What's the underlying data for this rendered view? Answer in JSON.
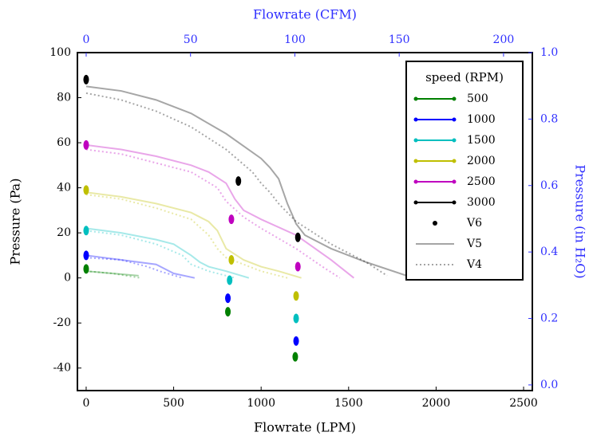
{
  "chart_data": {
    "type": "line",
    "xlabel": "Flowrate (LPM)",
    "ylabel": "Pressure (Pa)",
    "x2label": "Flowrate (CFM)",
    "y2label": "Pressure (in H₂O)",
    "xlim": [
      -50,
      2550
    ],
    "xticks": [
      0,
      500,
      1000,
      1500,
      2000,
      2500
    ],
    "ylim": [
      -50,
      100
    ],
    "yticks": [
      -40,
      -20,
      0,
      20,
      40,
      60,
      80,
      100
    ],
    "x2lim": [
      -4.2,
      213.8
    ],
    "x2ticks": [
      0,
      50,
      100,
      150,
      200
    ],
    "y2lim": [
      -0.017,
      1.0
    ],
    "y2ticks": [
      {
        "value": 0,
        "label": "0.0"
      },
      0.2,
      0.4,
      0.6,
      0.8,
      {
        "value": 1,
        "label": "1.0"
      }
    ],
    "secondary_color": "#3030ff",
    "legend": "upper right",
    "legend_title": "speed (RPM)",
    "versions": [
      {
        "name": "V6",
        "style": "dots",
        "opacity": 1
      },
      {
        "name": "V5",
        "style": "solid",
        "opacity": 0.35
      },
      {
        "name": "V4",
        "style": "dotted",
        "opacity": 0.35
      }
    ],
    "series": [
      {
        "name": "500",
        "color": "#008000",
        "data": [
          {
            "x": [
              0,
              810,
              1195
            ],
            "values": [
              4,
              -15,
              -35
            ]
          },
          {
            "x": [
              0,
              150,
              300
            ],
            "values": [
              3,
              2,
              1
            ]
          },
          {
            "x": [
              0,
              150,
              310
            ],
            "values": [
              3,
              2,
              0
            ]
          }
        ]
      },
      {
        "name": "1000",
        "color": "#0000ff",
        "data": [
          {
            "x": [
              0,
              810,
              1200
            ],
            "values": [
              10,
              -9,
              -28
            ]
          },
          {
            "x": [
              0,
              200,
              400,
              450,
              500,
              620
            ],
            "values": [
              10,
              8,
              6,
              4,
              2,
              0
            ]
          },
          {
            "x": [
              0,
              200,
              350,
              420,
              550
            ],
            "values": [
              9,
              8,
              5,
              3,
              0
            ]
          }
        ]
      },
      {
        "name": "1500",
        "color": "#00bfbf",
        "data": [
          {
            "x": [
              0,
              820,
              1200
            ],
            "values": [
              21,
              -1,
              -18
            ]
          },
          {
            "x": [
              0,
              200,
              400,
              500,
              600,
              650,
              700,
              800,
              930
            ],
            "values": [
              22,
              20,
              17,
              15,
              10,
              7,
              5,
              3,
              0
            ]
          },
          {
            "x": [
              0,
              200,
              400,
              550,
              600,
              700,
              850
            ],
            "values": [
              21,
              19,
              15,
              10,
              6,
              3,
              0
            ]
          }
        ]
      },
      {
        "name": "2000",
        "color": "#bfbf00",
        "data": [
          {
            "x": [
              0,
              830,
              1200
            ],
            "values": [
              39,
              8,
              -8
            ]
          },
          {
            "x": [
              0,
              200,
              400,
              600,
              700,
              750,
              800,
              900,
              1000,
              1100,
              1230
            ],
            "values": [
              38,
              36,
              33,
              29,
              25,
              21,
              13,
              8,
              5,
              3,
              0
            ]
          },
          {
            "x": [
              0,
              200,
              400,
              600,
              700,
              750,
              800,
              900,
              1000,
              1150
            ],
            "values": [
              37,
              35,
              31,
              26,
              19,
              13,
              9,
              6,
              3,
              0
            ]
          }
        ]
      },
      {
        "name": "2500",
        "color": "#bf00bf",
        "data": [
          {
            "x": [
              0,
              830,
              1210
            ],
            "values": [
              59,
              26,
              5
            ]
          },
          {
            "x": [
              0,
              200,
              400,
              600,
              700,
              800,
              850,
              900,
              1000,
              1200,
              1400,
              1530
            ],
            "values": [
              59,
              57,
              54,
              50,
              47,
              42,
              35,
              30,
              26,
              19,
              8,
              0
            ]
          },
          {
            "x": [
              0,
              200,
              400,
              600,
              750,
              800,
              900,
              1000,
              1200,
              1350,
              1450
            ],
            "values": [
              57,
              55,
              51,
              47,
              40,
              34,
              27,
              22,
              13,
              5,
              0
            ]
          }
        ]
      },
      {
        "name": "3000",
        "color": "#000000",
        "data": [
          {
            "x": [
              0,
              870,
              1210
            ],
            "values": [
              88,
              43,
              18
            ]
          },
          {
            "x": [
              0,
              200,
              400,
              600,
              800,
              1000,
              1050,
              1100,
              1150,
              1200,
              1250,
              1400,
              1600,
              1870
            ],
            "values": [
              85,
              83,
              79,
              73,
              64,
              53,
              49,
              44,
              33,
              24,
              19,
              13,
              7,
              0
            ]
          },
          {
            "x": [
              0,
              200,
              400,
              600,
              800,
              950,
              1000,
              1050,
              1100,
              1200,
              1400,
              1600,
              1720
            ],
            "values": [
              82,
              79,
              74,
              67,
              57,
              47,
              42,
              38,
              33,
              25,
              15,
              7,
              1
            ]
          }
        ]
      }
    ]
  }
}
